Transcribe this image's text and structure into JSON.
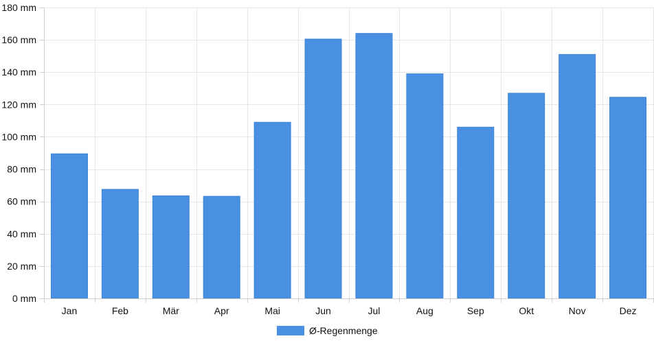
{
  "chart_data": {
    "type": "bar",
    "categories": [
      "Jan",
      "Feb",
      "Mär",
      "Apr",
      "Mai",
      "Jun",
      "Jul",
      "Aug",
      "Sep",
      "Okt",
      "Nov",
      "Dez"
    ],
    "series": [
      {
        "name": "Ø-Regenmenge",
        "color": "#4a90e2",
        "values": [
          89.5,
          67.5,
          63.5,
          63.2,
          109,
          160.5,
          164,
          139,
          106,
          127,
          151,
          124.5
        ]
      }
    ],
    "y_ticks": [
      "0 mm",
      "20 mm",
      "40 mm",
      "60 mm",
      "80 mm",
      "100 mm",
      "120 mm",
      "140 mm",
      "160 mm",
      "180 mm"
    ],
    "y_tick_values": [
      0,
      20,
      40,
      60,
      80,
      100,
      120,
      140,
      160,
      180
    ],
    "ylim": [
      0,
      180
    ],
    "grid": true,
    "legend_position": "bottom-center"
  }
}
